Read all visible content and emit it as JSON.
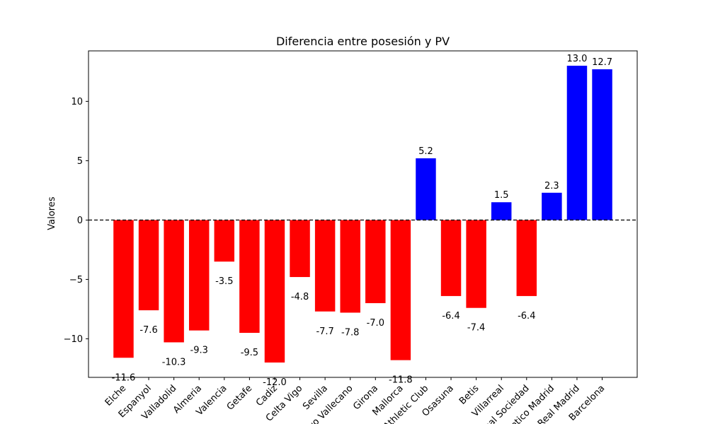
{
  "chart_data": {
    "type": "bar",
    "title": "Diferencia entre posesión y PV",
    "xlabel": "",
    "ylabel": "Valores",
    "categories": [
      "Elche",
      "Espanyol",
      "Valladolid",
      "Almeria",
      "Valencia",
      "Getafe",
      "Cadiz",
      "Celta Vigo",
      "Sevilla",
      "Rayo Vallecano",
      "Girona",
      "Mallorca",
      "Athletic Club",
      "Osasuna",
      "Betis",
      "Villarreal",
      "Real Sociedad",
      "Atletico Madrid",
      "Real Madrid",
      "Barcelona"
    ],
    "values": [
      -11.6,
      -7.6,
      -10.3,
      -9.3,
      -3.5,
      -9.5,
      -12.0,
      -4.8,
      -7.7,
      -7.8,
      -7.0,
      -11.8,
      5.2,
      -6.4,
      -7.4,
      1.5,
      -6.4,
      2.3,
      13.0,
      12.7
    ],
    "value_labels": [
      "-11.6",
      "-7.6",
      "-10.3",
      "-9.3",
      "-3.5",
      "-9.5",
      "-12.0",
      "-4.8",
      "-7.7",
      "-7.8",
      "-7.0",
      "-11.8",
      "5.2",
      "-6.4",
      "-7.4",
      "1.5",
      "-6.4",
      "2.3",
      "13.0",
      "12.7"
    ],
    "ylim": [
      -13.25,
      14.25
    ],
    "yticks": [
      -10,
      -5,
      0,
      5,
      10
    ],
    "ytick_labels": [
      "−10",
      "−5",
      "0",
      "5",
      "10"
    ],
    "reference_line": 0,
    "grid": false,
    "colors": {
      "positive": "#0000ff",
      "negative": "#ff0000",
      "reference": "#000000"
    }
  }
}
